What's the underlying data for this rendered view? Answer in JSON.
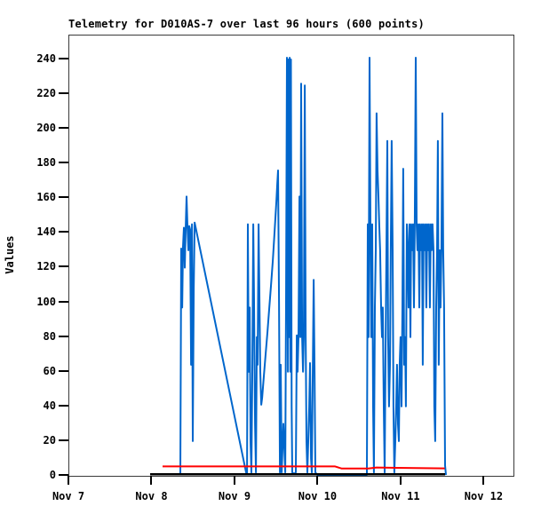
{
  "title": "Telemetry for D010AS-7 over last 96 hours (600 points)",
  "ylabel": "Values",
  "colors": {
    "telemetry_blue": "#0066cc",
    "baseline_red": "#ff0000",
    "baseline_black": "#000000",
    "axis": "#000000",
    "border": "#3a3a3a",
    "background": "#ffffff"
  },
  "chart_data": {
    "type": "line",
    "title": "Telemetry for D010AS-7 over last 96 hours (600 points)",
    "xlabel": "",
    "ylabel": "Values",
    "x_unit": "days since Nov 7",
    "xlim": [
      0,
      5.348
    ],
    "ylim": [
      0,
      253.8
    ],
    "grid": false,
    "legend_position": "none",
    "y_ticks": [
      0,
      20,
      40,
      60,
      80,
      100,
      120,
      140,
      160,
      180,
      200,
      220,
      240
    ],
    "x_ticks": [
      {
        "pos": 0,
        "label": "Nov 7"
      },
      {
        "pos": 1,
        "label": "Nov 8"
      },
      {
        "pos": 2,
        "label": "Nov 9"
      },
      {
        "pos": 3,
        "label": "Nov 10"
      },
      {
        "pos": 4,
        "label": "Nov 11"
      },
      {
        "pos": 5,
        "label": "Nov 12"
      }
    ],
    "series": [
      {
        "name": "telemetry-values",
        "color": "#0066cc",
        "width": 2,
        "points": [
          [
            1.337,
            0.5
          ],
          [
            1.348,
            131
          ],
          [
            1.359,
            97
          ],
          [
            1.369,
            132
          ],
          [
            1.38,
            143
          ],
          [
            1.391,
            120
          ],
          [
            1.402,
            144
          ],
          [
            1.412,
            161
          ],
          [
            1.423,
            144
          ],
          [
            1.434,
            130
          ],
          [
            1.444,
            144
          ],
          [
            1.455,
            142
          ],
          [
            1.466,
            64
          ],
          [
            1.477,
            145
          ],
          [
            1.487,
            20
          ],
          [
            1.498,
            108
          ],
          [
            1.509,
            146
          ],
          [
            2.129,
            2
          ],
          [
            2.14,
            1
          ],
          [
            2.15,
            145
          ],
          [
            2.161,
            60
          ],
          [
            2.172,
            97
          ],
          [
            2.182,
            20
          ],
          [
            2.193,
            2
          ],
          [
            2.204,
            64
          ],
          [
            2.215,
            145
          ],
          [
            2.225,
            100
          ],
          [
            2.236,
            30
          ],
          [
            2.247,
            2
          ],
          [
            2.258,
            80
          ],
          [
            2.268,
            64
          ],
          [
            2.279,
            145
          ],
          [
            2.29,
            100
          ],
          [
            2.3,
            60
          ],
          [
            2.311,
            41
          ],
          [
            2.322,
            45
          ],
          [
            2.343,
            58
          ],
          [
            2.364,
            70
          ],
          [
            2.386,
            83
          ],
          [
            2.407,
            96
          ],
          [
            2.429,
            110
          ],
          [
            2.45,
            124
          ],
          [
            2.471,
            140
          ],
          [
            2.493,
            158
          ],
          [
            2.504,
            168
          ],
          [
            2.514,
            176
          ],
          [
            2.525,
            100
          ],
          [
            2.536,
            2
          ],
          [
            2.546,
            64
          ],
          [
            2.557,
            2
          ],
          [
            2.578,
            30
          ],
          [
            2.6,
            2
          ],
          [
            2.61,
            100
          ],
          [
            2.621,
            241
          ],
          [
            2.632,
            60
          ],
          [
            2.639,
            240
          ],
          [
            2.647,
            80
          ],
          [
            2.654,
            241
          ],
          [
            2.662,
            60
          ],
          [
            2.669,
            240
          ],
          [
            2.677,
            40
          ],
          [
            2.685,
            2
          ],
          [
            2.707,
            1
          ],
          [
            2.728,
            2
          ],
          [
            2.739,
            81
          ],
          [
            2.749,
            60
          ],
          [
            2.76,
            80
          ],
          [
            2.771,
            161
          ],
          [
            2.782,
            80
          ],
          [
            2.792,
            226
          ],
          [
            2.803,
            80
          ],
          [
            2.814,
            60
          ],
          [
            2.824,
            80
          ],
          [
            2.835,
            225
          ],
          [
            2.846,
            80
          ],
          [
            2.856,
            20
          ],
          [
            2.867,
            2
          ],
          [
            2.889,
            40
          ],
          [
            2.899,
            65
          ],
          [
            2.91,
            10
          ],
          [
            2.92,
            2
          ],
          [
            2.942,
            113
          ],
          [
            2.953,
            60
          ],
          [
            2.963,
            2
          ],
          [
            2.985,
            0.5
          ],
          [
            3.583,
            0.5
          ],
          [
            3.594,
            145
          ],
          [
            3.604,
            80
          ],
          [
            3.615,
            241
          ],
          [
            3.626,
            145
          ],
          [
            3.636,
            80
          ],
          [
            3.647,
            145
          ],
          [
            3.658,
            40
          ],
          [
            3.668,
            2
          ],
          [
            3.679,
            97
          ],
          [
            3.69,
            130
          ],
          [
            3.7,
            209
          ],
          [
            3.711,
            176
          ],
          [
            3.722,
            161
          ],
          [
            3.732,
            145
          ],
          [
            3.743,
            130
          ],
          [
            3.754,
            97
          ],
          [
            3.765,
            80
          ],
          [
            3.775,
            97
          ],
          [
            3.786,
            40
          ],
          [
            3.797,
            2
          ],
          [
            3.807,
            64
          ],
          [
            3.818,
            130
          ],
          [
            3.829,
            193
          ],
          [
            3.839,
            80
          ],
          [
            3.85,
            40
          ],
          [
            3.861,
            64
          ],
          [
            3.871,
            130
          ],
          [
            3.882,
            193
          ],
          [
            3.893,
            130
          ],
          [
            3.903,
            40
          ],
          [
            3.914,
            2
          ],
          [
            3.925,
            20
          ],
          [
            3.936,
            40
          ],
          [
            3.946,
            64
          ],
          [
            3.957,
            30
          ],
          [
            3.968,
            20
          ],
          [
            3.978,
            64
          ],
          [
            3.989,
            80
          ],
          [
            4.0,
            40
          ],
          [
            4.011,
            97
          ],
          [
            4.021,
            177
          ],
          [
            4.032,
            64
          ],
          [
            4.043,
            80
          ],
          [
            4.053,
            40
          ],
          [
            4.064,
            145
          ],
          [
            4.075,
            130
          ],
          [
            4.085,
            97
          ],
          [
            4.096,
            145
          ],
          [
            4.107,
            80
          ],
          [
            4.117,
            145
          ],
          [
            4.128,
            130
          ],
          [
            4.139,
            145
          ],
          [
            4.15,
            97
          ],
          [
            4.16,
            145
          ],
          [
            4.171,
            241
          ],
          [
            4.182,
            145
          ],
          [
            4.192,
            130
          ],
          [
            4.203,
            145
          ],
          [
            4.214,
            97
          ],
          [
            4.224,
            145
          ],
          [
            4.235,
            130
          ],
          [
            4.246,
            145
          ],
          [
            4.256,
            64
          ],
          [
            4.267,
            145
          ],
          [
            4.278,
            130
          ],
          [
            4.289,
            145
          ],
          [
            4.299,
            97
          ],
          [
            4.31,
            145
          ],
          [
            4.321,
            130
          ],
          [
            4.331,
            145
          ],
          [
            4.342,
            97
          ],
          [
            4.353,
            145
          ],
          [
            4.363,
            130
          ],
          [
            4.374,
            145
          ],
          [
            4.385,
            130
          ],
          [
            4.395,
            40
          ],
          [
            4.406,
            20
          ],
          [
            4.417,
            97
          ],
          [
            4.428,
            130
          ],
          [
            4.438,
            193
          ],
          [
            4.449,
            64
          ],
          [
            4.46,
            130
          ],
          [
            4.47,
            97
          ],
          [
            4.481,
            130
          ],
          [
            4.492,
            209
          ],
          [
            4.502,
            130
          ],
          [
            4.513,
            97
          ],
          [
            4.524,
            6
          ],
          [
            4.535,
            0.5
          ]
        ]
      },
      {
        "name": "red-baseline",
        "color": "#ff0000",
        "width": 2,
        "points": [
          [
            1.123,
            5.4
          ],
          [
            3.2,
            5.4
          ],
          [
            3.28,
            4.2
          ],
          [
            3.6,
            4.2
          ],
          [
            3.7,
            4.8
          ],
          [
            3.95,
            4.6
          ],
          [
            4.52,
            4.3
          ]
        ]
      },
      {
        "name": "black-baseline",
        "color": "#000000",
        "width": 2.5,
        "points": [
          [
            0.973,
            0.9
          ],
          [
            4.524,
            0.9
          ]
        ]
      }
    ]
  }
}
